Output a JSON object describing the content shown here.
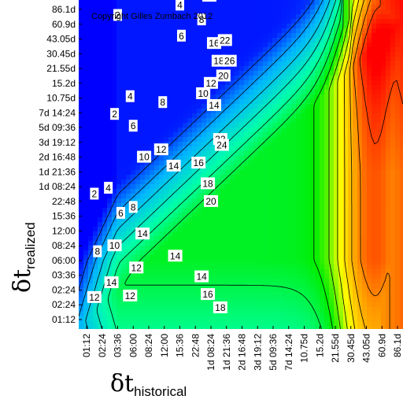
{
  "chart_data": {
    "type": "heatmap",
    "subtype": "filled-contour",
    "copyright": "Copyright Gilles Zumbach 2012",
    "xlabel": {
      "symbol": "δt",
      "subscript": "historical"
    },
    "ylabel": {
      "symbol": "δt",
      "subscript": "realized"
    },
    "x_ticks": [
      "01:12",
      "02:24",
      "03:36",
      "06:00",
      "08:24",
      "12:00",
      "15:36",
      "22:48",
      "1d 08:24",
      "1d 21:36",
      "2d 16:48",
      "3d 19:12",
      "5d 09:36",
      "7d 14:24",
      "10.75d",
      "15.2d",
      "21.55d",
      "30.45d",
      "43.05d",
      "60.9d",
      "86.1d"
    ],
    "y_ticks": [
      "01:12",
      "02:24",
      "02:24",
      "03:36",
      "06:00",
      "08:24",
      "12:00",
      "15:36",
      "22:48",
      "1d 08:24",
      "1d 21:36",
      "2d 16:48",
      "3d 19:12",
      "5d 09:36",
      "7d 14:24",
      "10.75d",
      "15.2d",
      "21.55d",
      "30.45d",
      "43.05d",
      "60.9d",
      "86.1d"
    ],
    "contour_levels": [
      2,
      4,
      6,
      8,
      10,
      12,
      14,
      16,
      18,
      20,
      22,
      24,
      26
    ],
    "value_range": [
      0,
      28
    ],
    "colormap": [
      "#0000ff",
      "#00b4ff",
      "#00ffaa",
      "#00ee00",
      "#ffff00",
      "#ff9900",
      "#ff0000"
    ],
    "contour_labels": [
      {
        "text": "2",
        "x": 2.0,
        "y": 20.6
      },
      {
        "text": "4",
        "x": 6.0,
        "y": 21.3
      },
      {
        "text": "8",
        "x": 7.4,
        "y": 20.3
      },
      {
        "text": "12",
        "x": 7.9,
        "y": 21.9
      },
      {
        "text": "16",
        "x": 8.2,
        "y": 18.7
      },
      {
        "text": "22",
        "x": 8.9,
        "y": 18.9
      },
      {
        "text": "6",
        "x": 6.1,
        "y": 19.2
      },
      {
        "text": "18",
        "x": 8.5,
        "y": 17.5
      },
      {
        "text": "26",
        "x": 9.2,
        "y": 17.5
      },
      {
        "text": "20",
        "x": 8.8,
        "y": 16.5
      },
      {
        "text": "12",
        "x": 8.0,
        "y": 16.0
      },
      {
        "text": "10",
        "x": 7.5,
        "y": 15.3
      },
      {
        "text": "14",
        "x": 8.2,
        "y": 14.5
      },
      {
        "text": "2",
        "x": 1.8,
        "y": 13.9
      },
      {
        "text": "4",
        "x": 2.8,
        "y": 15.1
      },
      {
        "text": "8",
        "x": 4.9,
        "y": 14.7
      },
      {
        "text": "6",
        "x": 3.0,
        "y": 13.1
      },
      {
        "text": "22",
        "x": 8.6,
        "y": 12.2
      },
      {
        "text": "24",
        "x": 8.7,
        "y": 11.8
      },
      {
        "text": "16",
        "x": 7.2,
        "y": 10.6
      },
      {
        "text": "10",
        "x": 3.7,
        "y": 11.0
      },
      {
        "text": "12",
        "x": 4.8,
        "y": 11.5
      },
      {
        "text": "14",
        "x": 5.6,
        "y": 10.4
      },
      {
        "text": "18",
        "x": 7.8,
        "y": 9.2
      },
      {
        "text": "20",
        "x": 8.0,
        "y": 8.0
      },
      {
        "text": "4",
        "x": 1.4,
        "y": 8.9
      },
      {
        "text": "2",
        "x": 0.5,
        "y": 8.5
      },
      {
        "text": "6",
        "x": 2.2,
        "y": 7.2
      },
      {
        "text": "8",
        "x": 3.0,
        "y": 7.6
      },
      {
        "text": "14",
        "x": 3.6,
        "y": 5.8
      },
      {
        "text": "10",
        "x": 1.8,
        "y": 5.0
      },
      {
        "text": "8",
        "x": 0.7,
        "y": 4.6
      },
      {
        "text": "12",
        "x": 3.2,
        "y": 3.5
      },
      {
        "text": "14",
        "x": 5.7,
        "y": 4.3
      },
      {
        "text": "14",
        "x": 7.4,
        "y": 2.9
      },
      {
        "text": "16",
        "x": 7.8,
        "y": 1.7
      },
      {
        "text": "18",
        "x": 8.6,
        "y": 0.8
      },
      {
        "text": "14",
        "x": 1.6,
        "y": 2.5
      },
      {
        "text": "12",
        "x": 2.8,
        "y": 1.6
      },
      {
        "text": "12",
        "x": 0.5,
        "y": 1.5
      }
    ]
  }
}
